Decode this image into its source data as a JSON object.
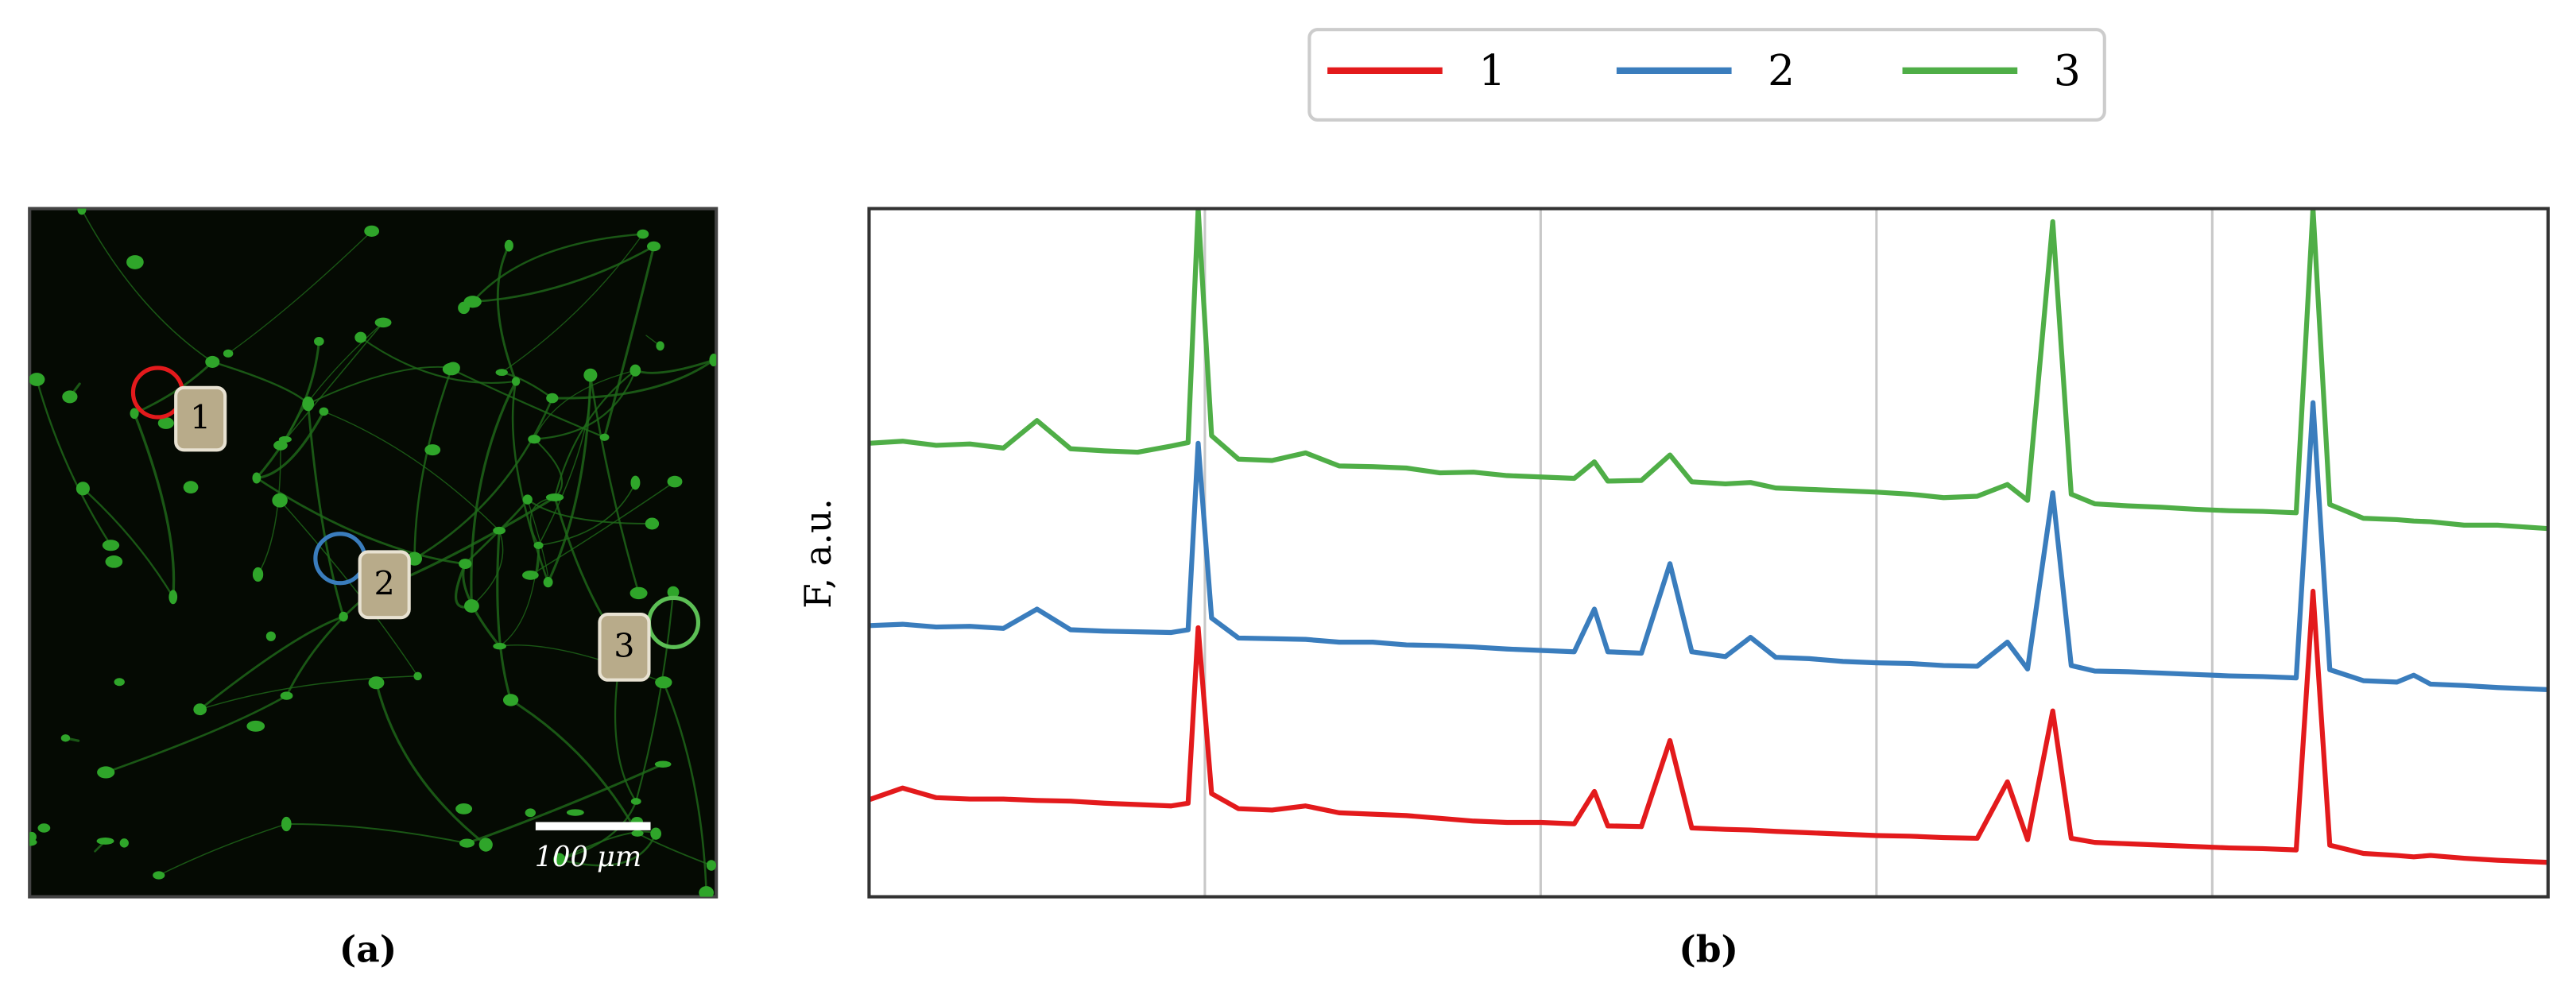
{
  "image": {
    "markers": [
      "1",
      "2",
      "3"
    ],
    "scale_bar": "100 μm",
    "caption": "(a)"
  },
  "chart_data": {
    "type": "line",
    "caption": "(b)",
    "ylabel": "F, a.u.",
    "x": [
      0,
      2,
      4,
      6,
      8,
      10,
      12,
      14,
      16,
      18,
      19,
      19.6,
      20.4,
      22,
      24,
      26,
      28,
      30,
      32,
      34,
      36,
      38,
      40,
      42,
      43.2,
      44,
      46,
      47.7,
      49,
      51,
      52.5,
      54,
      56,
      58,
      60,
      62,
      64,
      66,
      67.8,
      69,
      70.5,
      71.6,
      73,
      75,
      77,
      79,
      81,
      83,
      85,
      86,
      87,
      89,
      91,
      92,
      93,
      95,
      97,
      100
    ],
    "xlim": [
      0,
      100
    ],
    "ylim": [
      0,
      100
    ],
    "xticks": [
      20,
      40,
      60,
      80
    ],
    "grid": true,
    "legend": "top",
    "series": [
      {
        "name": "1",
        "color": "#e31a1c",
        "values": [
          14.1,
          15.8,
          14.4,
          14.2,
          14.2,
          14.0,
          13.9,
          13.6,
          13.4,
          13.2,
          13.6,
          39.1,
          15,
          12.8,
          12.6,
          13.2,
          12.2,
          12.0,
          11.8,
          11.4,
          11.0,
          10.8,
          10.8,
          10.6,
          15.3,
          10.3,
          10.2,
          22.7,
          10.0,
          9.8,
          9.7,
          9.5,
          9.3,
          9.1,
          8.9,
          8.8,
          8.6,
          8.5,
          16.7,
          8.3,
          27.0,
          8.5,
          7.9,
          7.7,
          7.5,
          7.3,
          7.1,
          7.0,
          6.8,
          44.4,
          7.5,
          6.3,
          6.0,
          5.8,
          6.0,
          5.6,
          5.3,
          5.0
        ]
      },
      {
        "name": "2",
        "color": "#3a7dbd",
        "values": [
          39.4,
          39.6,
          39.2,
          39.3,
          39.0,
          41.8,
          38.8,
          38.6,
          38.5,
          38.4,
          38.8,
          65.9,
          40.5,
          37.6,
          37.5,
          37.4,
          37.0,
          37.0,
          36.6,
          36.5,
          36.3,
          36.0,
          35.8,
          35.6,
          41.8,
          35.6,
          35.4,
          48.4,
          35.6,
          34.9,
          37.7,
          34.8,
          34.6,
          34.2,
          34.0,
          33.9,
          33.6,
          33.5,
          37.0,
          33.1,
          58.7,
          33.6,
          32.8,
          32.7,
          32.5,
          32.3,
          32.1,
          32.0,
          31.8,
          71.8,
          33,
          31.4,
          31.2,
          32.2,
          30.9,
          30.7,
          30.4,
          30.1
        ]
      },
      {
        "name": "3",
        "color": "#4fae47",
        "values": [
          65.9,
          66.2,
          65.6,
          65.8,
          65.2,
          69.2,
          65.1,
          64.8,
          64.6,
          65.5,
          66,
          100,
          67,
          63.6,
          63.4,
          64.5,
          62.6,
          62.5,
          62.3,
          61.6,
          61.7,
          61.2,
          61.0,
          60.8,
          63.2,
          60.4,
          60.5,
          64.2,
          60.3,
          60.0,
          60.2,
          59.4,
          59.2,
          59.0,
          58.8,
          58.5,
          58.0,
          58.2,
          59.9,
          57.6,
          98.1,
          58.5,
          57.1,
          56.8,
          56.6,
          56.3,
          56.1,
          56.0,
          55.8,
          100,
          57,
          55.0,
          54.8,
          54.6,
          54.5,
          54.0,
          54.0,
          53.5
        ]
      }
    ]
  }
}
